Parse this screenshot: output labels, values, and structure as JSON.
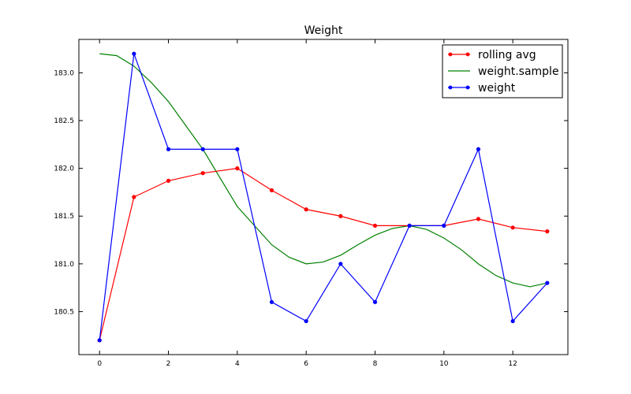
{
  "chart_data": {
    "type": "line",
    "title": "Weight",
    "xlabel": "",
    "ylabel": "",
    "xlim": [
      -0.6,
      13.6
    ],
    "ylim": [
      180.05,
      183.35
    ],
    "xticks": [
      0,
      2,
      4,
      6,
      8,
      10,
      12
    ],
    "yticks": [
      180.5,
      181.0,
      181.5,
      182.0,
      182.5,
      183.0
    ],
    "xtick_labels": [
      "0",
      "2",
      "4",
      "6",
      "8",
      "10",
      "12"
    ],
    "ytick_labels": [
      "180.5",
      "181.0",
      "181.5",
      "182.0",
      "182.5",
      "183.0"
    ],
    "grid": false,
    "legend_position": "top-right",
    "series": [
      {
        "name": "rolling avg",
        "color": "#ff0000",
        "marker": true,
        "x": [
          0,
          1,
          2,
          3,
          4,
          5,
          6,
          7,
          8,
          9,
          10,
          11,
          12,
          13
        ],
        "values": [
          180.2,
          181.7,
          181.87,
          181.95,
          182.0,
          181.77,
          181.57,
          181.5,
          181.4,
          181.4,
          181.4,
          181.47,
          181.38,
          181.34
        ]
      },
      {
        "name": "weight.sample",
        "color": "#008000",
        "marker": false,
        "x": [
          0,
          0.5,
          1,
          1.5,
          2,
          2.5,
          3,
          3.5,
          4,
          4.5,
          5,
          5.5,
          6,
          6.5,
          7,
          7.5,
          8,
          8.5,
          9,
          9.5,
          10,
          10.5,
          11,
          11.5,
          12,
          12.5,
          13
        ],
        "values": [
          183.2,
          183.18,
          183.07,
          182.9,
          182.7,
          182.45,
          182.2,
          181.9,
          181.6,
          181.4,
          181.2,
          181.07,
          181.0,
          181.02,
          181.09,
          181.2,
          181.3,
          181.37,
          181.4,
          181.36,
          181.27,
          181.15,
          181.0,
          180.88,
          180.8,
          180.76,
          180.8
        ]
      },
      {
        "name": "weight",
        "color": "#0000ff",
        "marker": true,
        "x": [
          0,
          1,
          2,
          3,
          4,
          5,
          6,
          7,
          8,
          9,
          10,
          11,
          12,
          13
        ],
        "values": [
          180.2,
          183.2,
          182.2,
          182.2,
          182.2,
          180.6,
          180.4,
          181.0,
          180.6,
          181.4,
          181.4,
          182.2,
          180.4,
          180.8
        ]
      }
    ]
  }
}
